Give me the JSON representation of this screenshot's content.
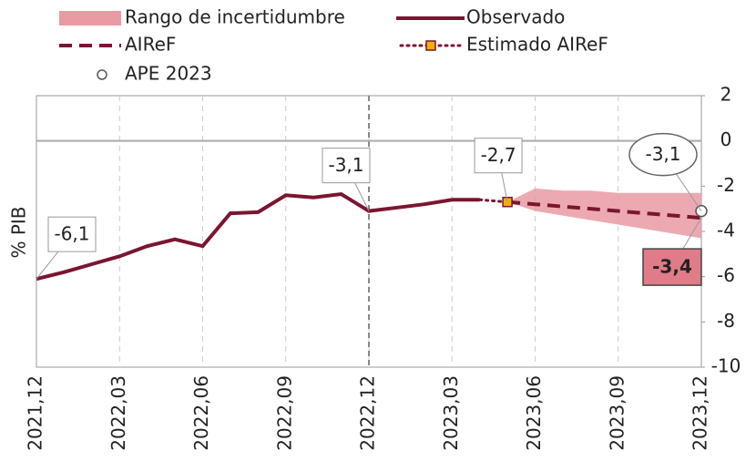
{
  "chart_data": {
    "type": "line",
    "y_label": "% PIB",
    "categories": [
      "2021,12",
      null,
      null,
      "2022,03",
      null,
      null,
      "2022,06",
      null,
      null,
      "2022,09",
      null,
      null,
      "2022,12",
      null,
      null,
      "2023,03",
      null,
      null,
      "2023,06",
      null,
      null,
      "2023,09",
      null,
      null,
      "2023,12"
    ],
    "ylim": [
      -10,
      2
    ],
    "yticks": [
      -10,
      -8,
      -6,
      -4,
      -2,
      0,
      2
    ],
    "series": [
      {
        "name": "Rango de incertidumbre",
        "kind": "band",
        "color": "#e99aa3",
        "lower": [
          null,
          null,
          null,
          null,
          null,
          null,
          null,
          null,
          null,
          null,
          null,
          null,
          null,
          null,
          null,
          null,
          null,
          -2.7,
          -3.1,
          -3.3,
          -3.5,
          -3.7,
          -3.9,
          -4.1,
          -4.3
        ],
        "upper": [
          null,
          null,
          null,
          null,
          null,
          null,
          null,
          null,
          null,
          null,
          null,
          null,
          null,
          null,
          null,
          null,
          null,
          -2.7,
          -2.1,
          -2.2,
          -2.2,
          -2.3,
          -2.3,
          -2.3,
          -2.3
        ]
      },
      {
        "name": "Observado",
        "kind": "solid",
        "color": "#7b1530",
        "values": [
          -6.1,
          -5.8,
          -5.45,
          -5.1,
          -4.65,
          -4.35,
          -4.65,
          -3.2,
          -3.15,
          -2.4,
          -2.5,
          -2.35,
          -3.1,
          -2.95,
          -2.8,
          -2.6,
          -2.6,
          null,
          null,
          null,
          null,
          null,
          null,
          null,
          null
        ],
        "value_labels": [
          "-6,1",
          null,
          null,
          null,
          null,
          null,
          null,
          null,
          null,
          null,
          null,
          null,
          "-3,1",
          null,
          null,
          null,
          null,
          null,
          null,
          null,
          null,
          null,
          null,
          null,
          null
        ]
      },
      {
        "name": "AIReF",
        "kind": "dashed",
        "color": "#7b1530",
        "values": [
          null,
          null,
          null,
          null,
          null,
          null,
          null,
          null,
          null,
          null,
          null,
          null,
          null,
          null,
          null,
          null,
          null,
          -2.7,
          -2.8,
          -2.9,
          -3.0,
          -3.1,
          -3.2,
          -3.3,
          -3.4
        ],
        "value_labels": [
          null,
          null,
          null,
          null,
          null,
          null,
          null,
          null,
          null,
          null,
          null,
          null,
          null,
          null,
          null,
          null,
          null,
          null,
          null,
          null,
          null,
          null,
          null,
          null,
          "-3,4"
        ]
      },
      {
        "name": "Estimado AIReF",
        "kind": "dotted",
        "color": "#7b1530",
        "marker_color": "#f2b100",
        "values": [
          null,
          null,
          null,
          null,
          null,
          null,
          null,
          null,
          null,
          null,
          null,
          null,
          null,
          null,
          null,
          null,
          -2.6,
          -2.7,
          null,
          null,
          null,
          null,
          null,
          null,
          null
        ],
        "value_labels": [
          null,
          null,
          null,
          null,
          null,
          null,
          null,
          null,
          null,
          null,
          null,
          null,
          null,
          null,
          null,
          null,
          null,
          "-2,7",
          null,
          null,
          null,
          null,
          null,
          null,
          null
        ]
      },
      {
        "name": "APE 2023",
        "kind": "circle",
        "color": "#555555",
        "values": [
          null,
          null,
          null,
          null,
          null,
          null,
          null,
          null,
          null,
          null,
          null,
          null,
          null,
          null,
          null,
          null,
          null,
          null,
          null,
          null,
          null,
          null,
          null,
          null,
          -3.1
        ],
        "value_labels": [
          null,
          null,
          null,
          null,
          null,
          null,
          null,
          null,
          null,
          null,
          null,
          null,
          null,
          null,
          null,
          null,
          null,
          null,
          null,
          null,
          null,
          null,
          null,
          null,
          "-3,1"
        ]
      }
    ]
  }
}
